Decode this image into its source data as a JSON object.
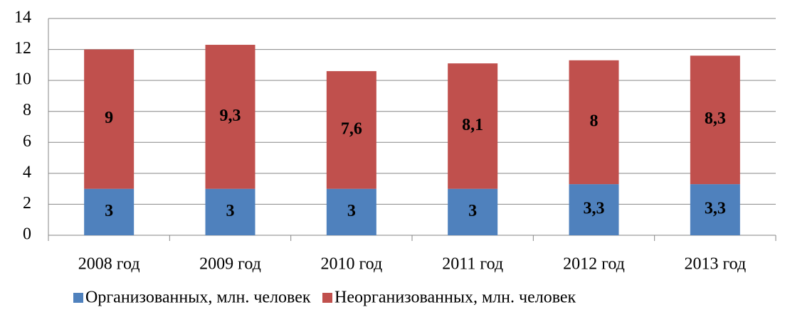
{
  "chart_data": {
    "type": "stacked_bar",
    "categories": [
      "2008 год",
      "2009 год",
      "2010 год",
      "2011 год",
      "2012 год",
      "2013 год"
    ],
    "series": [
      {
        "name": "Организованных, млн. человек",
        "color": "#4f81bd",
        "values": [
          3,
          3,
          3,
          3,
          3.3,
          3.3
        ],
        "value_labels": [
          "3",
          "3",
          "3",
          "3",
          "3,3",
          "3,3"
        ]
      },
      {
        "name": "Неорганизованных, млн. человек",
        "color": "#c0504d",
        "values": [
          9,
          9.3,
          7.6,
          8.1,
          8,
          8.3
        ],
        "value_labels": [
          "9",
          "9,3",
          "7,6",
          "8,1",
          "8",
          "8,3"
        ]
      }
    ],
    "ylim": [
      0,
      14
    ],
    "yticks": [
      0,
      2,
      4,
      6,
      8,
      10,
      12,
      14
    ],
    "grid": true,
    "legend": "bottom"
  }
}
